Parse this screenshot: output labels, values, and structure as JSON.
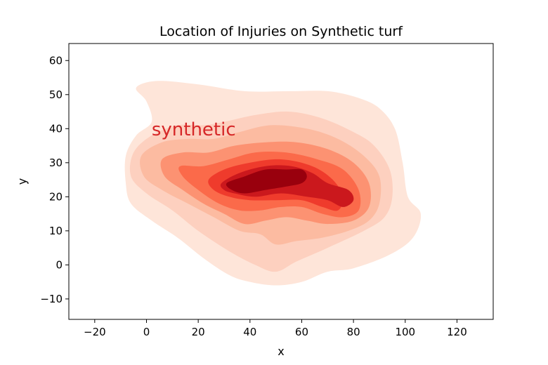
{
  "chart_data": {
    "type": "kde_contour",
    "title": "Location of Injuries on Synthetic turf",
    "xlabel": "x",
    "ylabel": "y",
    "xlim": [
      -30,
      134
    ],
    "ylim": [
      -16,
      65
    ],
    "xticks": [
      -20,
      0,
      20,
      40,
      60,
      80,
      100,
      120
    ],
    "yticks": [
      -10,
      0,
      10,
      20,
      30,
      40,
      50,
      60
    ],
    "grid": false,
    "annotation": {
      "text": "synthetic",
      "x": 2,
      "y": 38,
      "color": "#d62728"
    },
    "colormap": [
      "#fee5d9",
      "#fdd0bf",
      "#fcbba1",
      "#fc9272",
      "#fb6a4a",
      "#ef3b2c",
      "#cb181d",
      "#99000d"
    ],
    "peak": {
      "x": 50,
      "y": 26
    },
    "levels": [
      {
        "level": 1,
        "color": "#fee5d9",
        "polygon": [
          [
            -4,
            52
          ],
          [
            4,
            54
          ],
          [
            20,
            53
          ],
          [
            38,
            51
          ],
          [
            55,
            51
          ],
          [
            70,
            51
          ],
          [
            82,
            49
          ],
          [
            90,
            46
          ],
          [
            96,
            40
          ],
          [
            99,
            30
          ],
          [
            101,
            20
          ],
          [
            106,
            15
          ],
          [
            103,
            8
          ],
          [
            94,
            3
          ],
          [
            80,
            -1
          ],
          [
            70,
            -2
          ],
          [
            60,
            -5
          ],
          [
            50,
            -6
          ],
          [
            40,
            -5
          ],
          [
            32,
            -3
          ],
          [
            22,
            2
          ],
          [
            12,
            8
          ],
          [
            2,
            13
          ],
          [
            -6,
            18
          ],
          [
            -8,
            24
          ],
          [
            -8,
            32
          ],
          [
            -4,
            38
          ],
          [
            2,
            42
          ],
          [
            0,
            48
          ]
        ]
      },
      {
        "level": 2,
        "color": "#fdd0bf",
        "polygon": [
          [
            -5,
            33
          ],
          [
            2,
            38
          ],
          [
            12,
            41
          ],
          [
            22,
            41
          ],
          [
            30,
            42
          ],
          [
            42,
            44
          ],
          [
            55,
            45
          ],
          [
            68,
            43
          ],
          [
            80,
            39
          ],
          [
            88,
            35
          ],
          [
            94,
            28
          ],
          [
            95,
            20
          ],
          [
            92,
            14
          ],
          [
            84,
            10
          ],
          [
            70,
            5
          ],
          [
            58,
            1
          ],
          [
            50,
            -2
          ],
          [
            42,
            0
          ],
          [
            32,
            4
          ],
          [
            20,
            10
          ],
          [
            10,
            16
          ],
          [
            0,
            21
          ],
          [
            -6,
            26
          ]
        ]
      },
      {
        "level": 3,
        "color": "#fcbba1",
        "polygon": [
          [
            -2,
            32
          ],
          [
            6,
            36
          ],
          [
            16,
            37
          ],
          [
            26,
            37
          ],
          [
            36,
            39
          ],
          [
            48,
            41
          ],
          [
            62,
            40
          ],
          [
            74,
            37
          ],
          [
            84,
            32
          ],
          [
            90,
            26
          ],
          [
            90,
            18
          ],
          [
            86,
            13
          ],
          [
            78,
            10
          ],
          [
            68,
            8
          ],
          [
            58,
            7
          ],
          [
            50,
            6
          ],
          [
            44,
            9
          ],
          [
            36,
            10
          ],
          [
            26,
            14
          ],
          [
            16,
            18
          ],
          [
            6,
            22
          ],
          [
            -1,
            26
          ]
        ]
      },
      {
        "level": 4,
        "color": "#fc9272",
        "polygon": [
          [
            6,
            31
          ],
          [
            14,
            33
          ],
          [
            24,
            33
          ],
          [
            34,
            35
          ],
          [
            46,
            36
          ],
          [
            58,
            36
          ],
          [
            70,
            34
          ],
          [
            80,
            30
          ],
          [
            86,
            24
          ],
          [
            86,
            17
          ],
          [
            80,
            13
          ],
          [
            70,
            12
          ],
          [
            62,
            13
          ],
          [
            54,
            14
          ],
          [
            46,
            13
          ],
          [
            38,
            12
          ],
          [
            30,
            15
          ],
          [
            22,
            18
          ],
          [
            14,
            22
          ],
          [
            7,
            26
          ]
        ]
      },
      {
        "level": 5,
        "color": "#fb6a4a",
        "polygon": [
          [
            13,
            29
          ],
          [
            22,
            29
          ],
          [
            32,
            31
          ],
          [
            42,
            33
          ],
          [
            54,
            33
          ],
          [
            66,
            31
          ],
          [
            76,
            28
          ],
          [
            82,
            22
          ],
          [
            82,
            16
          ],
          [
            76,
            14
          ],
          [
            68,
            15
          ],
          [
            60,
            17
          ],
          [
            52,
            17
          ],
          [
            44,
            16
          ],
          [
            36,
            16
          ],
          [
            28,
            18
          ],
          [
            20,
            22
          ],
          [
            14,
            26
          ]
        ]
      },
      {
        "level": 6,
        "color": "#ef3b2c",
        "polygon": [
          [
            24,
            25
          ],
          [
            30,
            28
          ],
          [
            40,
            30
          ],
          [
            52,
            31
          ],
          [
            64,
            29
          ],
          [
            72,
            25
          ],
          [
            76,
            20
          ],
          [
            74,
            16
          ],
          [
            68,
            17
          ],
          [
            60,
            19
          ],
          [
            50,
            19
          ],
          [
            40,
            19
          ],
          [
            32,
            20
          ],
          [
            26,
            22
          ]
        ]
      },
      {
        "level": 7,
        "color": "#cb181d",
        "polygon": [
          [
            29,
            24
          ],
          [
            36,
            27
          ],
          [
            46,
            29
          ],
          [
            56,
            29
          ],
          [
            64,
            27
          ],
          [
            70,
            24
          ],
          [
            78,
            22
          ],
          [
            80,
            19
          ],
          [
            76,
            17
          ],
          [
            70,
            19
          ],
          [
            62,
            20
          ],
          [
            52,
            21
          ],
          [
            42,
            20
          ],
          [
            34,
            21
          ],
          [
            30,
            22
          ]
        ]
      },
      {
        "level": 8,
        "color": "#99000d",
        "polygon": [
          [
            31,
            24
          ],
          [
            38,
            26
          ],
          [
            46,
            28
          ],
          [
            54,
            28
          ],
          [
            60,
            28
          ],
          [
            62,
            26
          ],
          [
            60,
            24
          ],
          [
            54,
            23
          ],
          [
            46,
            22
          ],
          [
            38,
            21
          ],
          [
            33,
            22
          ]
        ]
      }
    ]
  }
}
